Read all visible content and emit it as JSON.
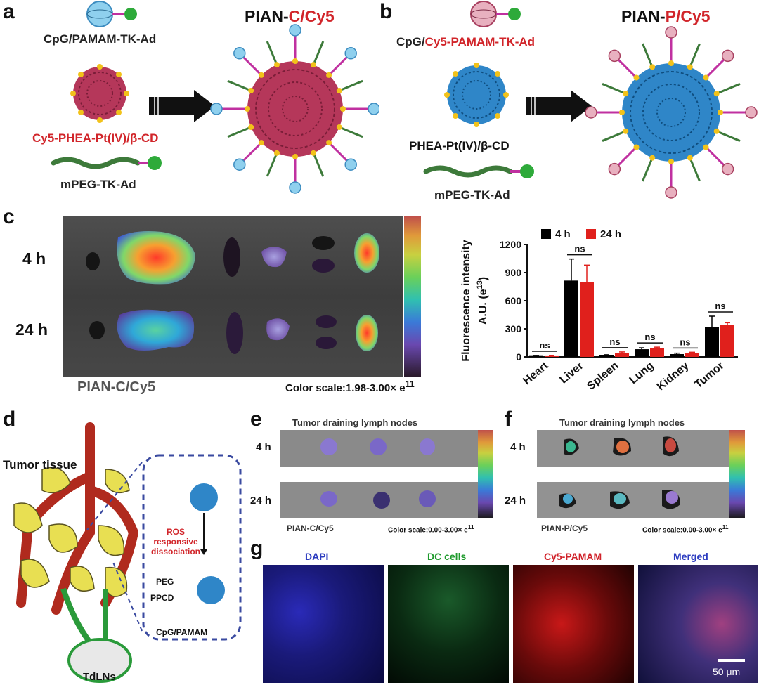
{
  "panel_a": {
    "letter": "a",
    "label_cpg": "CpG/PAMAM-TK-Ad",
    "label_cy5phea": "Cy5-PHEA-Pt(IV)/β-CD",
    "label_mpeg": "mPEG-TK-Ad",
    "title_black": "PIAN-",
    "title_red": "C/Cy5",
    "colors": {
      "core": "#b5375a",
      "shell_dot": "#f2c21a",
      "ball": "#5ab4e0"
    }
  },
  "panel_b": {
    "letter": "b",
    "label_cpg_black": "CpG/",
    "label_cpg_red": "Cy5-PAMAM-TK-Ad",
    "label_phea": "PHEA-Pt(IV)/β-CD",
    "label_mpeg": "mPEG-TK-Ad",
    "title_black": "PIAN-",
    "title_red": "P/Cy5",
    "colors": {
      "core": "#2f86c8",
      "ball": "#c85a78"
    }
  },
  "panel_c": {
    "letter": "c",
    "row_4h": "4 h",
    "row_24h": "24 h",
    "caption_left": "PIAN-C/Cy5",
    "caption_right_text": "Color scale:1.98-3.00",
    "caption_right_times": "×",
    "caption_right_base": "e",
    "caption_right_exp": "11"
  },
  "chart_data": {
    "type": "bar",
    "categories": [
      "Heart",
      "Liver",
      "Spleen",
      "Lung",
      "Kidney",
      "Tumor"
    ],
    "series": [
      {
        "name": "4 h",
        "color": "#000000",
        "values": [
          10,
          815,
          18,
          82,
          30,
          320
        ],
        "errors": [
          5,
          230,
          5,
          15,
          10,
          115
        ]
      },
      {
        "name": "24 h",
        "color": "#e0201c",
        "values": [
          8,
          800,
          45,
          92,
          42,
          340
        ],
        "errors": [
          4,
          180,
          8,
          12,
          8,
          25
        ]
      }
    ],
    "ylabel_line1": "Fluorescence intensity",
    "ylabel_line2_a": "A.U. (e",
    "ylabel_line2_exp": "13",
    "ylabel_line2_b": ")",
    "ylim": [
      0,
      1200
    ],
    "yticks": [
      "0",
      "300",
      "600",
      "900",
      "1200"
    ],
    "annotations": [
      "ns",
      "ns",
      "ns",
      "ns",
      "ns",
      "ns"
    ],
    "legend": "top"
  },
  "panel_d": {
    "letter": "d",
    "tumor_tissue": "Tumor tissue",
    "ros_line1": "ROS responsive",
    "ros_line2": "dissociation",
    "peg": "PEG",
    "ppcd": "PPCD",
    "cpg_pamam": "CpG/PAMAM",
    "tdlns": "TdLNs"
  },
  "panel_e": {
    "letter": "e",
    "title": "Tumor draining lymph nodes",
    "row_4h": "4 h",
    "row_24h": "24 h",
    "caption_left": "PIAN-C/Cy5",
    "caption_right": "Color scale:0.00-3.00",
    "caption_times": "×",
    "caption_base": "e",
    "caption_exp": "11"
  },
  "panel_f": {
    "letter": "f",
    "title": "Tumor draining lymph nodes",
    "row_4h": "4 h",
    "row_24h": "24 h",
    "caption_left": "PIAN-P/Cy5",
    "caption_right": "Color scale:0.00-3.00",
    "caption_times": "×",
    "caption_base": "e",
    "caption_exp": "11"
  },
  "panel_g": {
    "letter": "g",
    "titles": [
      "DAPI",
      "DC cells",
      "Cy5-PAMAM",
      "Merged"
    ],
    "title_colors": [
      "#2c3cc0",
      "#1e9a2c",
      "#d0222a",
      "#2c3cc0"
    ],
    "scalebar": "50 μm"
  }
}
